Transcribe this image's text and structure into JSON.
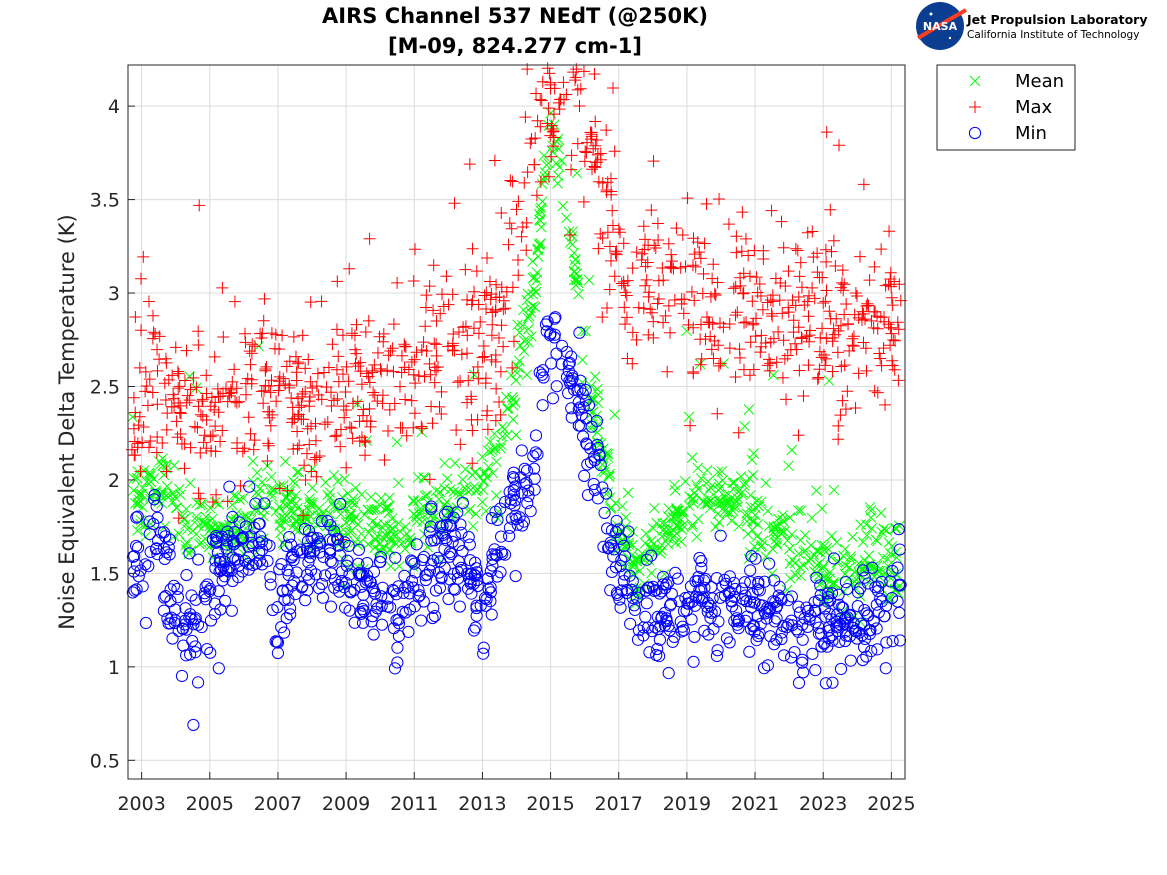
{
  "logo": {
    "emblem_text": "NASA",
    "org_name": "Jet Propulsion Laboratory",
    "org_sub": "California Institute of Technology"
  },
  "chart_data": {
    "type": "scatter",
    "title": "AIRS Channel 537 NEdT (@250K)",
    "subtitle": "[M-09, 824.277 cm-1]",
    "xlabel": "",
    "ylabel": "Noise Equivalent Delta Temperature (K)",
    "xlim": [
      2002.6,
      2025.4
    ],
    "ylim": [
      0.4,
      4.22
    ],
    "x_ticks": [
      2003,
      2005,
      2007,
      2009,
      2011,
      2013,
      2015,
      2017,
      2019,
      2021,
      2023,
      2025
    ],
    "x_tick_labels": [
      "2003",
      "2005",
      "2007",
      "2009",
      "2011",
      "2013",
      "2015",
      "2017",
      "2019",
      "2021",
      "2023",
      "2025"
    ],
    "y_ticks": [
      0.5,
      1,
      1.5,
      2,
      2.5,
      3,
      3.5,
      4
    ],
    "y_tick_labels": [
      "0.5",
      "1",
      "1.5",
      "2",
      "2.5",
      "3",
      "3.5",
      "4"
    ],
    "grid": true,
    "legend_position": "outside-top-right",
    "series": [
      {
        "name": "Mean",
        "marker": "x",
        "color": "#00ff00",
        "anchors": [
          [
            2002.7,
            1.85
          ],
          [
            2003.5,
            2.0
          ],
          [
            2004.5,
            1.75
          ],
          [
            2005.5,
            1.7
          ],
          [
            2006.5,
            1.9
          ],
          [
            2007.5,
            1.85
          ],
          [
            2008.5,
            1.8
          ],
          [
            2009.5,
            1.75
          ],
          [
            2010.5,
            1.7
          ],
          [
            2011.5,
            1.85
          ],
          [
            2012.5,
            1.9
          ],
          [
            2013.5,
            2.15
          ],
          [
            2014.5,
            3.0
          ],
          [
            2015.0,
            3.9
          ],
          [
            2015.5,
            3.5
          ],
          [
            2016.0,
            2.6
          ],
          [
            2016.8,
            1.9
          ],
          [
            2017.5,
            1.5
          ],
          [
            2018.5,
            1.8
          ],
          [
            2019.5,
            1.9
          ],
          [
            2020.5,
            1.85
          ],
          [
            2021.5,
            1.75
          ],
          [
            2022.5,
            1.6
          ],
          [
            2023.5,
            1.5
          ],
          [
            2024.5,
            1.55
          ],
          [
            2025.3,
            1.55
          ]
        ],
        "spread": 0.2
      },
      {
        "name": "Max",
        "marker": "+",
        "color": "#ff0000",
        "anchors": [
          [
            2002.7,
            2.3
          ],
          [
            2003.5,
            2.55
          ],
          [
            2004.5,
            2.3
          ],
          [
            2005.5,
            2.35
          ],
          [
            2006.5,
            2.5
          ],
          [
            2007.5,
            2.4
          ],
          [
            2008.5,
            2.35
          ],
          [
            2009.5,
            2.45
          ],
          [
            2010.5,
            2.5
          ],
          [
            2011.5,
            2.6
          ],
          [
            2012.5,
            2.7
          ],
          [
            2013.5,
            2.75
          ],
          [
            2014.5,
            3.9
          ],
          [
            2015.0,
            4.1
          ],
          [
            2015.5,
            4.05
          ],
          [
            2016.0,
            3.9
          ],
          [
            2016.8,
            3.3
          ],
          [
            2017.5,
            3.0
          ],
          [
            2018.5,
            3.05
          ],
          [
            2019.5,
            2.95
          ],
          [
            2020.5,
            2.9
          ],
          [
            2021.5,
            2.9
          ],
          [
            2022.5,
            2.85
          ],
          [
            2023.5,
            2.8
          ],
          [
            2024.5,
            2.85
          ],
          [
            2025.3,
            2.9
          ]
        ],
        "spread": 0.45
      },
      {
        "name": "Min",
        "marker": "o",
        "color": "#0000ff",
        "anchors": [
          [
            2002.7,
            1.5
          ],
          [
            2003.5,
            1.8
          ],
          [
            2004.0,
            1.3
          ],
          [
            2004.5,
            1.2
          ],
          [
            2005.5,
            1.6
          ],
          [
            2006.5,
            1.7
          ],
          [
            2007.0,
            1.3
          ],
          [
            2007.5,
            1.55
          ],
          [
            2008.5,
            1.6
          ],
          [
            2009.5,
            1.45
          ],
          [
            2010.5,
            1.3
          ],
          [
            2011.5,
            1.6
          ],
          [
            2012.5,
            1.65
          ],
          [
            2013.0,
            1.3
          ],
          [
            2013.5,
            1.7
          ],
          [
            2014.5,
            2.1
          ],
          [
            2015.0,
            2.8
          ],
          [
            2015.5,
            2.6
          ],
          [
            2016.0,
            2.3
          ],
          [
            2016.8,
            1.7
          ],
          [
            2017.5,
            1.3
          ],
          [
            2018.5,
            1.3
          ],
          [
            2019.5,
            1.35
          ],
          [
            2020.5,
            1.35
          ],
          [
            2021.5,
            1.3
          ],
          [
            2022.5,
            1.2
          ],
          [
            2023.5,
            1.25
          ],
          [
            2024.5,
            1.3
          ],
          [
            2025.3,
            1.5
          ]
        ],
        "spread": 0.25
      }
    ],
    "points_per_series": 950
  }
}
